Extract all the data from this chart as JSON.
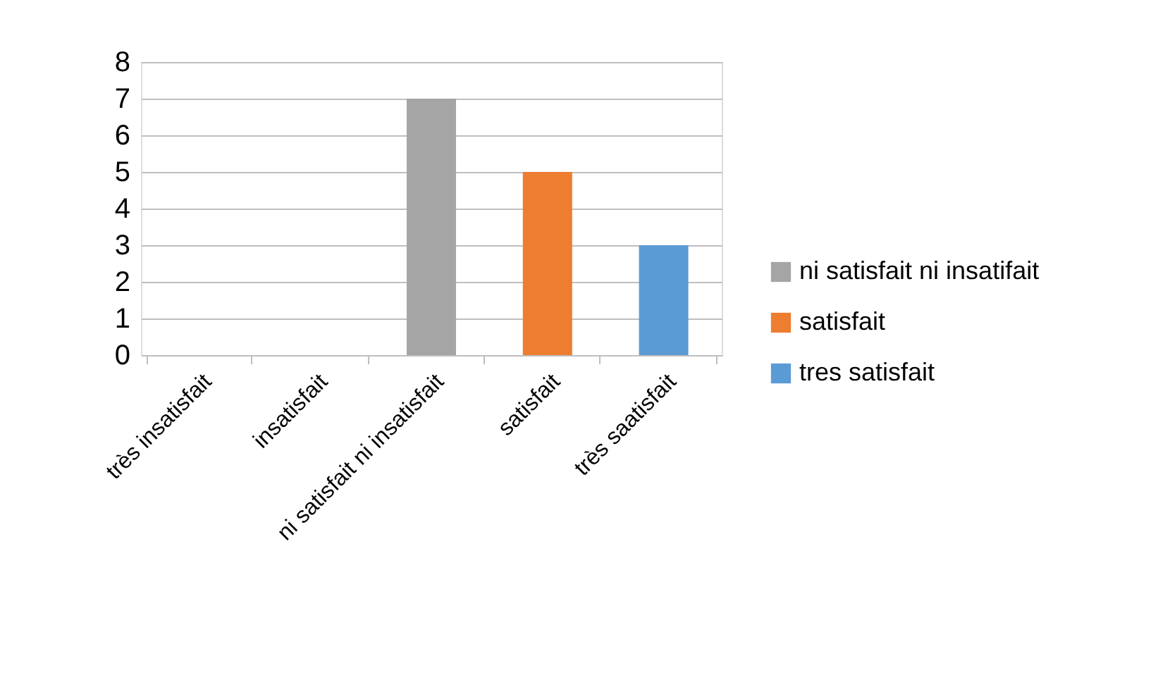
{
  "chart_data": {
    "type": "bar",
    "categories": [
      "très insatisfait",
      "insatisfait",
      "ni satisfait ni insatisfait",
      "satisfait",
      "très saatisfait"
    ],
    "series": [
      {
        "name": "ni satisfait ni insatifait",
        "color": "#a5a5a5",
        "values": [
          null,
          null,
          7,
          null,
          null
        ]
      },
      {
        "name": "satisfait",
        "color": "#ed7d31",
        "values": [
          null,
          null,
          null,
          5,
          null
        ]
      },
      {
        "name": "tres satisfait",
        "color": "#5b9bd5",
        "values": [
          null,
          null,
          null,
          null,
          3
        ]
      }
    ],
    "ylim": [
      0,
      8
    ],
    "yticks": [
      0,
      1,
      2,
      3,
      4,
      5,
      6,
      7,
      8
    ],
    "grid": "y",
    "legend": "right"
  }
}
